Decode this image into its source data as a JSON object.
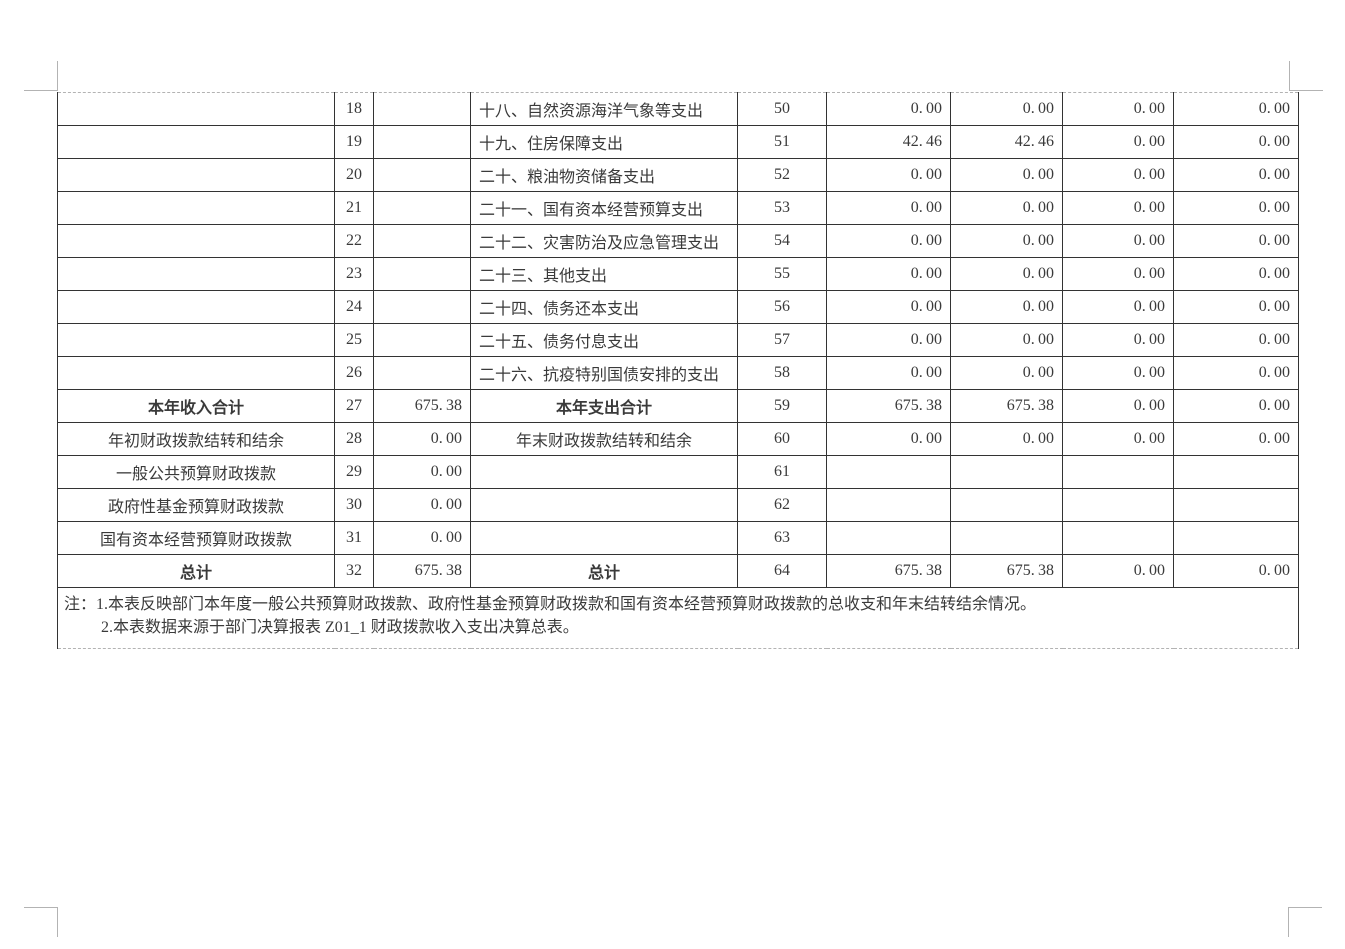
{
  "colors": {
    "text": "#3a3a3a",
    "border": "#333333",
    "guide": "#b3b3b3"
  },
  "table": {
    "rows": [
      {
        "left_label": "",
        "left_no": "18",
        "left_amount": "",
        "category": "十八、自然资源海洋气象等支出",
        "category_align": "left",
        "bold": false,
        "right_no": "50",
        "amounts": [
          "0.00",
          "0.00",
          "0.00",
          "0.00"
        ]
      },
      {
        "left_label": "",
        "left_no": "19",
        "left_amount": "",
        "category": "十九、住房保障支出",
        "category_align": "left",
        "bold": false,
        "right_no": "51",
        "amounts": [
          "42.46",
          "42.46",
          "0.00",
          "0.00"
        ]
      },
      {
        "left_label": "",
        "left_no": "20",
        "left_amount": "",
        "category": "二十、粮油物资储备支出",
        "category_align": "left",
        "bold": false,
        "right_no": "52",
        "amounts": [
          "0.00",
          "0.00",
          "0.00",
          "0.00"
        ]
      },
      {
        "left_label": "",
        "left_no": "21",
        "left_amount": "",
        "category": "二十一、国有资本经营预算支出",
        "category_align": "left",
        "bold": false,
        "right_no": "53",
        "amounts": [
          "0.00",
          "0.00",
          "0.00",
          "0.00"
        ]
      },
      {
        "left_label": "",
        "left_no": "22",
        "left_amount": "",
        "category": "二十二、灾害防治及应急管理支出",
        "category_align": "left",
        "bold": false,
        "right_no": "54",
        "amounts": [
          "0.00",
          "0.00",
          "0.00",
          "0.00"
        ]
      },
      {
        "left_label": "",
        "left_no": "23",
        "left_amount": "",
        "category": "二十三、其他支出",
        "category_align": "left",
        "bold": false,
        "right_no": "55",
        "amounts": [
          "0.00",
          "0.00",
          "0.00",
          "0.00"
        ]
      },
      {
        "left_label": "",
        "left_no": "24",
        "left_amount": "",
        "category": "二十四、债务还本支出",
        "category_align": "left",
        "bold": false,
        "right_no": "56",
        "amounts": [
          "0.00",
          "0.00",
          "0.00",
          "0.00"
        ]
      },
      {
        "left_label": "",
        "left_no": "25",
        "left_amount": "",
        "category": "二十五、债务付息支出",
        "category_align": "left",
        "bold": false,
        "right_no": "57",
        "amounts": [
          "0.00",
          "0.00",
          "0.00",
          "0.00"
        ]
      },
      {
        "left_label": "",
        "left_no": "26",
        "left_amount": "",
        "category": "二十六、抗疫特别国债安排的支出",
        "category_align": "left",
        "bold": false,
        "right_no": "58",
        "amounts": [
          "0.00",
          "0.00",
          "0.00",
          "0.00"
        ]
      },
      {
        "left_label": "本年收入合计",
        "left_no": "27",
        "left_amount": "675.38",
        "category": "本年支出合计",
        "category_align": "center",
        "bold": true,
        "right_no": "59",
        "amounts": [
          "675.38",
          "675.38",
          "0.00",
          "0.00"
        ]
      },
      {
        "left_label": "年初财政拨款结转和结余",
        "left_no": "28",
        "left_amount": "0.00",
        "category": "年末财政拨款结转和结余",
        "category_align": "center",
        "bold": false,
        "right_no": "60",
        "amounts": [
          "0.00",
          "0.00",
          "0.00",
          "0.00"
        ]
      },
      {
        "left_label": "一般公共预算财政拨款",
        "left_no": "29",
        "left_amount": "0.00",
        "category": "",
        "category_align": "center",
        "bold": false,
        "right_no": "61",
        "amounts": [
          "",
          "",
          "",
          ""
        ]
      },
      {
        "left_label": "政府性基金预算财政拨款",
        "left_no": "30",
        "left_amount": "0.00",
        "category": "",
        "category_align": "center",
        "bold": false,
        "right_no": "62",
        "amounts": [
          "",
          "",
          "",
          ""
        ]
      },
      {
        "left_label": "国有资本经营预算财政拨款",
        "left_no": "31",
        "left_amount": "0.00",
        "category": "",
        "category_align": "center",
        "bold": false,
        "right_no": "63",
        "amounts": [
          "",
          "",
          "",
          ""
        ]
      },
      {
        "left_label": "总计",
        "left_no": "32",
        "left_amount": "675.38",
        "category": "总计",
        "category_align": "center",
        "bold": true,
        "right_no": "64",
        "amounts": [
          "675.38",
          "675.38",
          "0.00",
          "0.00"
        ]
      }
    ],
    "note": {
      "line1": "注：1.本表反映部门本年度一般公共预算财政拨款、政府性基金预算财政拨款和国有资本经营预算财政拨款的总收支和年末结转结余情况。",
      "line2": "2.本表数据来源于部门决算报表 Z01_1 财政拨款收入支出决算总表。"
    }
  }
}
